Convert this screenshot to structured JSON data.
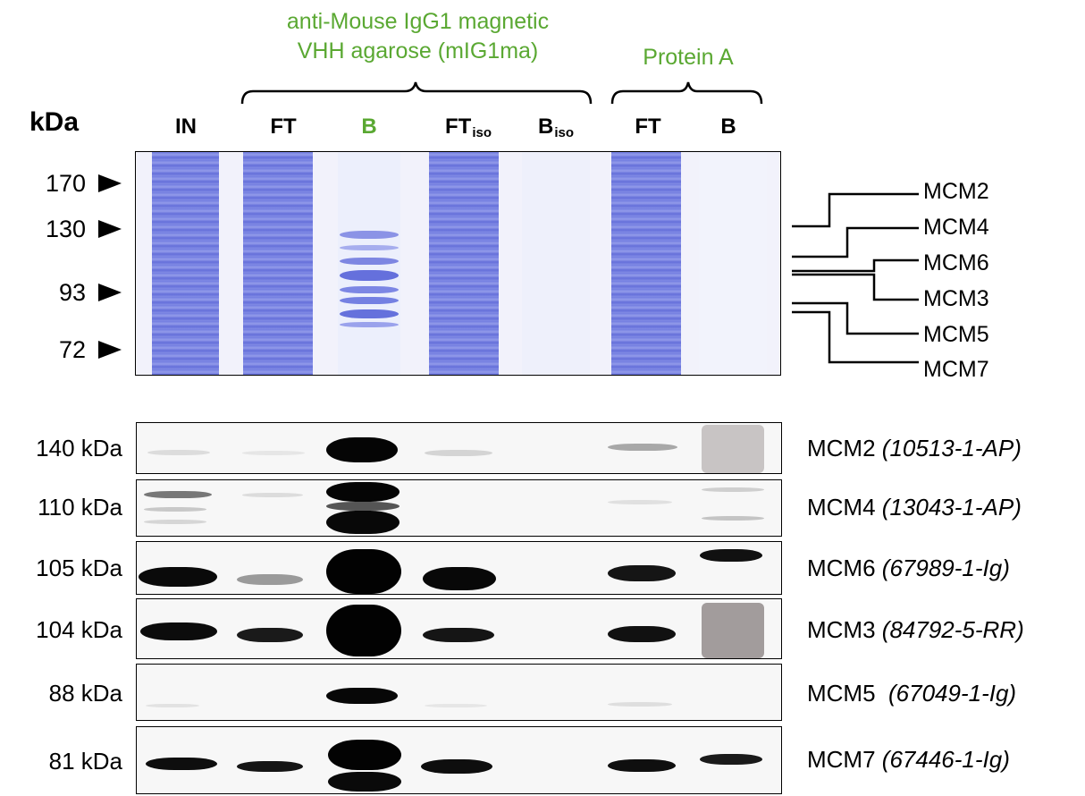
{
  "headers": {
    "vhh_line1": "anti-Mouse IgG1 magnetic",
    "vhh_line2": "VHH agarose (mIG1ma)",
    "protein_a": "Protein A"
  },
  "lanes": {
    "in": "IN",
    "ft1": "FT",
    "b1": "B",
    "ftiso_main": "FT",
    "ftiso_sub": "iso",
    "biso_main": "B",
    "biso_sub": "iso",
    "ft2": "FT",
    "b2": "B"
  },
  "gel": {
    "kda_title": "kDa",
    "markers": [
      "170",
      "130",
      "93",
      "72"
    ],
    "band_labels": [
      "MCM2",
      "MCM4",
      "MCM6",
      "MCM3",
      "MCM5",
      "MCM7"
    ]
  },
  "blots": [
    {
      "kda": "140 kDa",
      "protein": "MCM2",
      "antibody": "(10513-1-AP)"
    },
    {
      "kda": "110 kDa",
      "protein": "MCM4",
      "antibody": "(13043-1-AP)"
    },
    {
      "kda": "105 kDa",
      "protein": "MCM6",
      "antibody": "(67989-1-Ig)"
    },
    {
      "kda": "104 kDa",
      "protein": "MCM3",
      "antibody": "(84792-5-RR)"
    },
    {
      "kda": "88 kDa",
      "protein": "MCM5 ",
      "antibody": "(67049-1-Ig)"
    },
    {
      "kda": "81 kDa",
      "protein": "MCM7",
      "antibody": "(67446-1-Ig)"
    }
  ],
  "colors": {
    "header_green": "#5aa832",
    "coomassie": "#5a66d6"
  }
}
